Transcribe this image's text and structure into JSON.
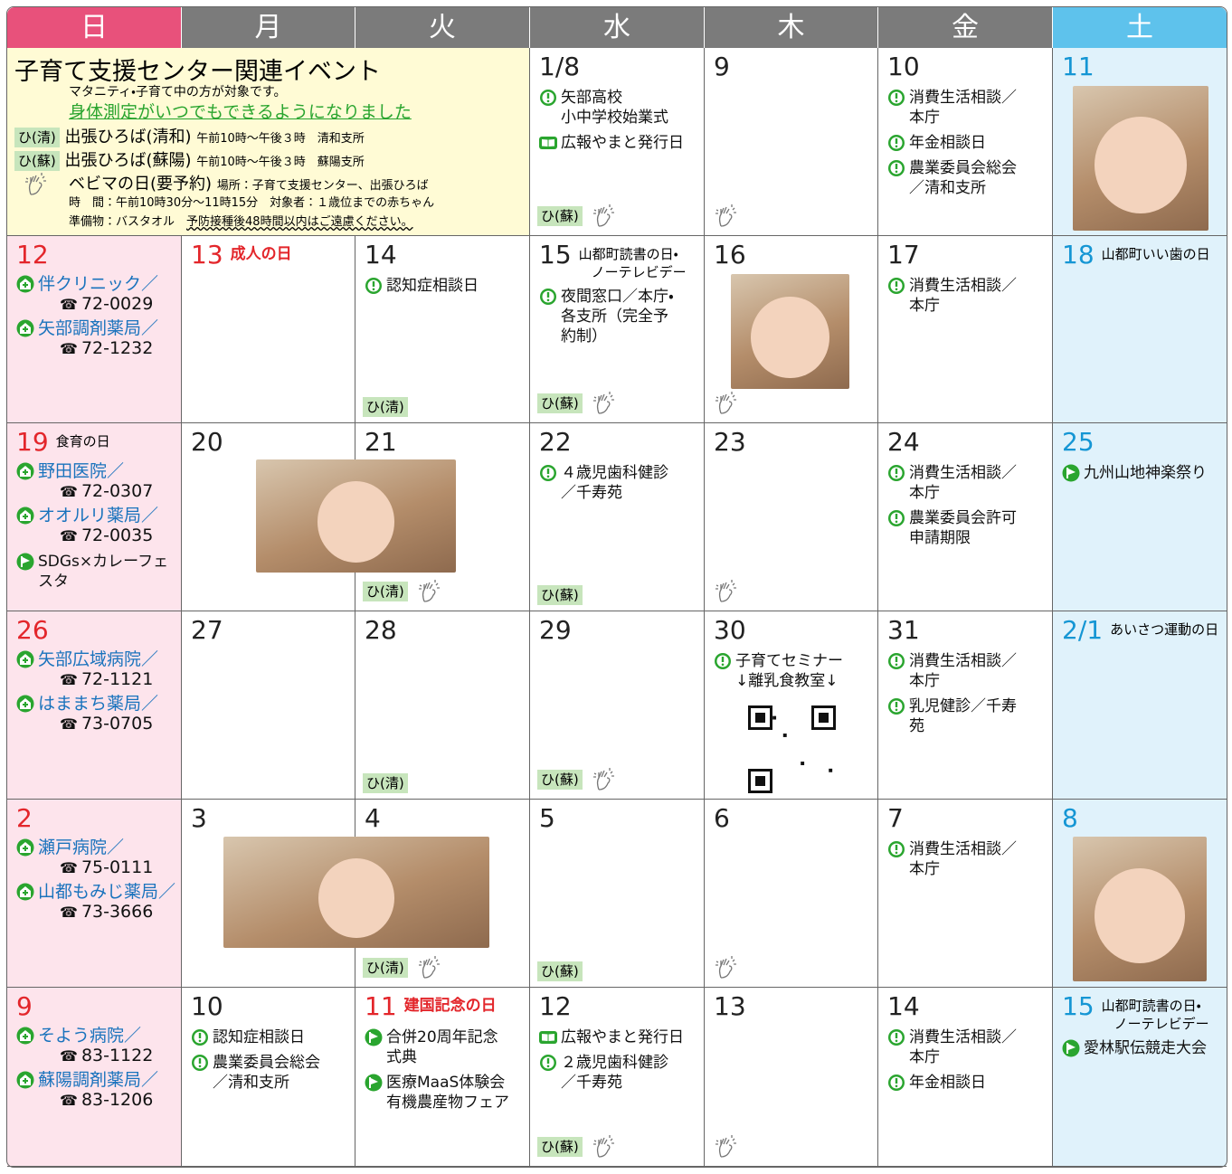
{
  "header": {
    "days": [
      "日",
      "月",
      "火",
      "水",
      "木",
      "金",
      "土"
    ]
  },
  "info": {
    "title": "子育て支援センター関連イベント",
    "note": "マタニティ・子育て中の方が対象です。",
    "highlight": "身体測定がいつでもできるようになりました",
    "items": [
      {
        "tag": "ひ(清)",
        "name": "出張ひろば(清和)",
        "detail": "午前10時～午後３時　清和支所"
      },
      {
        "tag": "ひ(蘇)",
        "name": "出張ひろば(蘇陽)",
        "detail": "午前10時～午後３時　蘇陽支所"
      }
    ],
    "baby": {
      "name": "ベビマの日(要予約)",
      "place": "場所：子育て支援センター、出張ひろば",
      "time": "時　間：午前10時30分～11時15分　対象者：１歳位までの赤ちゃん",
      "prep": "準備物：バスタオル",
      "warning": "予防接種後48時間以内はご遠慮ください。"
    }
  },
  "weeks": [
    {
      "cells": [
        null,
        null,
        null,
        {
          "date": "1/8",
          "events": [
            {
              "icon": "info",
              "text": [
                "矢部高校",
                "小中学校始業式"
              ]
            },
            {
              "icon": "book",
              "text": [
                "広報やまと発行日"
              ]
            }
          ],
          "tags": [
            "ひ(蘇)"
          ],
          "massage": true
        },
        {
          "date": "9",
          "massage": true
        },
        {
          "date": "10",
          "events": [
            {
              "icon": "info",
              "text": [
                "消費生活相談／",
                "本庁"
              ]
            },
            {
              "icon": "info",
              "text": [
                "年金相談日"
              ]
            },
            {
              "icon": "info",
              "text": [
                "農業委員会総会",
                "／清和支所"
              ]
            }
          ]
        },
        {
          "date": "11"
        }
      ]
    },
    {
      "cells": [
        {
          "date": "12",
          "events": [
            {
              "icon": "hospital",
              "text": [
                "伴クリニック／"
              ],
              "tel": "72-0029"
            },
            {
              "icon": "hospital",
              "text": [
                "矢部調剤薬局／"
              ],
              "tel": "72-1232"
            }
          ]
        },
        {
          "date": "13",
          "note": [
            "成人の日"
          ],
          "holiday": true
        },
        {
          "date": "14",
          "events": [
            {
              "icon": "info",
              "text": [
                "認知症相談日"
              ]
            }
          ],
          "tags": [
            "ひ(清)"
          ]
        },
        {
          "date": "15",
          "note": [
            "山都町読書の日・",
            "ノーテレビデー"
          ],
          "events": [
            {
              "icon": "info",
              "text": [
                "夜間窓口／本庁・",
                "各支所（完全予",
                "約制）"
              ]
            }
          ],
          "tags": [
            "ひ(蘇)"
          ],
          "massage": true
        },
        {
          "date": "16",
          "massage": true
        },
        {
          "date": "17",
          "events": [
            {
              "icon": "info",
              "text": [
                "消費生活相談／",
                "本庁"
              ]
            }
          ]
        },
        {
          "date": "18",
          "note": [
            "山都町いい歯の日"
          ]
        }
      ]
    },
    {
      "cells": [
        {
          "date": "19",
          "note": [
            "食育の日"
          ],
          "events": [
            {
              "icon": "hospital",
              "text": [
                "野田医院／"
              ],
              "tel": "72-0307"
            },
            {
              "icon": "hospital",
              "text": [
                "オオルリ薬局／"
              ],
              "tel": "72-0035"
            },
            {
              "icon": "flag",
              "text": [
                "SDGs×カレーフェスタ"
              ]
            }
          ]
        },
        {
          "date": "20"
        },
        {
          "date": "21",
          "tags": [
            "ひ(清)"
          ],
          "massage": true
        },
        {
          "date": "22",
          "events": [
            {
              "icon": "info",
              "text": [
                "４歳児歯科健診",
                "／千寿苑"
              ]
            }
          ],
          "tags": [
            "ひ(蘇)"
          ]
        },
        {
          "date": "23",
          "massage": true
        },
        {
          "date": "24",
          "events": [
            {
              "icon": "info",
              "text": [
                "消費生活相談／",
                "本庁"
              ]
            },
            {
              "icon": "info",
              "text": [
                "農業委員会許可",
                "申請期限"
              ]
            }
          ]
        },
        {
          "date": "25",
          "events": [
            {
              "icon": "flag",
              "text": [
                "九州山地神楽祭り"
              ]
            }
          ]
        }
      ]
    },
    {
      "cells": [
        {
          "date": "26",
          "events": [
            {
              "icon": "hospital",
              "text": [
                "矢部広域病院／"
              ],
              "tel": "72-1121"
            },
            {
              "icon": "hospital",
              "text": [
                "はままち薬局／"
              ],
              "tel": "73-0705"
            }
          ]
        },
        {
          "date": "27"
        },
        {
          "date": "28",
          "tags": [
            "ひ(清)"
          ]
        },
        {
          "date": "29",
          "tags": [
            "ひ(蘇)"
          ],
          "massage": true
        },
        {
          "date": "30",
          "events": [
            {
              "icon": "info",
              "text": [
                "子育てセミナー",
                "↓離乳食教室↓"
              ]
            }
          ]
        },
        {
          "date": "31",
          "events": [
            {
              "icon": "info",
              "text": [
                "消費生活相談／",
                "本庁"
              ]
            },
            {
              "icon": "info",
              "text": [
                "乳児健診／千寿",
                "苑"
              ]
            }
          ]
        },
        {
          "date": "2/1",
          "note": [
            "あいさつ運動の日"
          ]
        }
      ]
    },
    {
      "cells": [
        {
          "date": "2",
          "events": [
            {
              "icon": "hospital",
              "text": [
                "瀬戸病院／"
              ],
              "tel": "75-0111"
            },
            {
              "icon": "hospital",
              "text": [
                "山都もみじ薬局／"
              ],
              "tel": "73-3666"
            }
          ]
        },
        {
          "date": "3"
        },
        {
          "date": "4",
          "tags": [
            "ひ(清)"
          ],
          "massage": true
        },
        {
          "date": "5",
          "tags": [
            "ひ(蘇)"
          ]
        },
        {
          "date": "6",
          "massage": true
        },
        {
          "date": "7",
          "events": [
            {
              "icon": "info",
              "text": [
                "消費生活相談／",
                "本庁"
              ]
            }
          ]
        },
        {
          "date": "8"
        }
      ]
    },
    {
      "cells": [
        {
          "date": "9",
          "events": [
            {
              "icon": "hospital",
              "text": [
                "そよう病院／"
              ],
              "tel": "83-1122"
            },
            {
              "icon": "hospital",
              "text": [
                "蘇陽調剤薬局／"
              ],
              "tel": "83-1206"
            }
          ]
        },
        {
          "date": "10",
          "events": [
            {
              "icon": "info",
              "text": [
                "認知症相談日"
              ]
            },
            {
              "icon": "info",
              "text": [
                "農業委員会総会",
                "／清和支所"
              ]
            }
          ]
        },
        {
          "date": "11",
          "note": [
            "建国記念の日"
          ],
          "holiday": true,
          "events": [
            {
              "icon": "flag",
              "text": [
                "合併20周年記念",
                "式典"
              ]
            },
            {
              "icon": "flag",
              "text": [
                "医療MaaS体験会",
                "有機農産物フェア"
              ]
            }
          ]
        },
        {
          "date": "12",
          "events": [
            {
              "icon": "book",
              "text": [
                "広報やまと発行日"
              ]
            },
            {
              "icon": "info",
              "text": [
                "２歳児歯科健診",
                "／千寿苑"
              ]
            }
          ],
          "tags": [
            "ひ(蘇)"
          ],
          "massage": true
        },
        {
          "date": "13",
          "massage": true
        },
        {
          "date": "14",
          "events": [
            {
              "icon": "info",
              "text": [
                "消費生活相談／",
                "本庁"
              ]
            },
            {
              "icon": "info",
              "text": [
                "年金相談日"
              ]
            }
          ]
        },
        {
          "date": "15",
          "note": [
            "山都町読書の日・",
            "ノーテレビデー"
          ],
          "events": [
            {
              "icon": "flag",
              "text": [
                "愛林駅伝競走大会"
              ]
            }
          ]
        }
      ]
    }
  ]
}
